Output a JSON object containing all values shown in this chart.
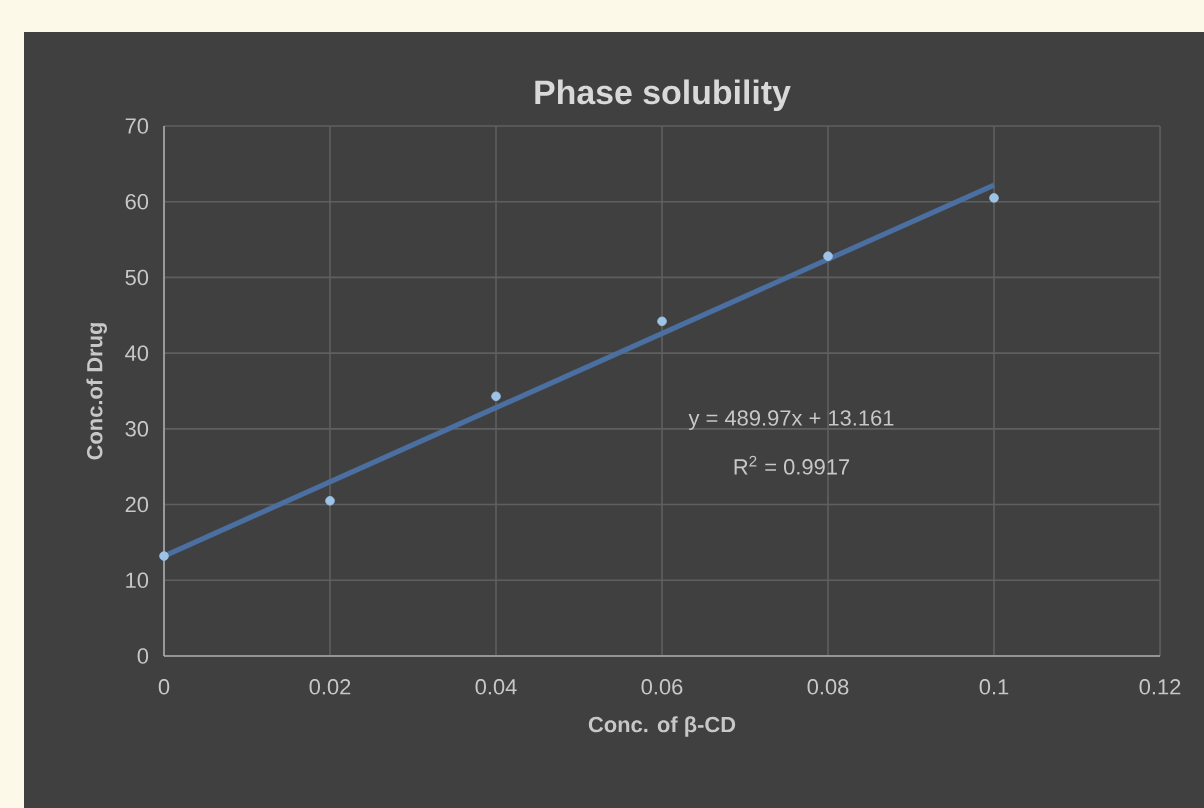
{
  "chart_data": {
    "type": "scatter",
    "title": "Phase solubility",
    "xlabel": "Conc. of β-CD",
    "ylabel": "Conc.of Drug",
    "x": [
      0,
      0.02,
      0.04,
      0.06,
      0.08,
      0.1
    ],
    "series": [
      {
        "color": "#9dc3e6",
        "marker": "circle",
        "values": [
          13.2,
          20.5,
          34.3,
          44.2,
          52.8,
          60.5
        ]
      },
      {
        "type": "line",
        "color": "#4a6fa0",
        "marker": "none",
        "x": [
          0,
          0.1
        ],
        "values": [
          13.2,
          62.2
        ]
      }
    ],
    "annotations": [
      "y = 489.97x + 13.161",
      "R$^{2}$ = 0.9917"
    ],
    "xlim": [
      0,
      0.12
    ],
    "ylim": [
      0,
      70
    ],
    "xticks": [
      0,
      0.02,
      0.04,
      0.06,
      0.08,
      0.1,
      0.12
    ],
    "yticks": [
      0,
      10,
      20,
      30,
      40,
      50,
      60,
      70
    ],
    "grid": true,
    "line_style": "solid"
  }
}
